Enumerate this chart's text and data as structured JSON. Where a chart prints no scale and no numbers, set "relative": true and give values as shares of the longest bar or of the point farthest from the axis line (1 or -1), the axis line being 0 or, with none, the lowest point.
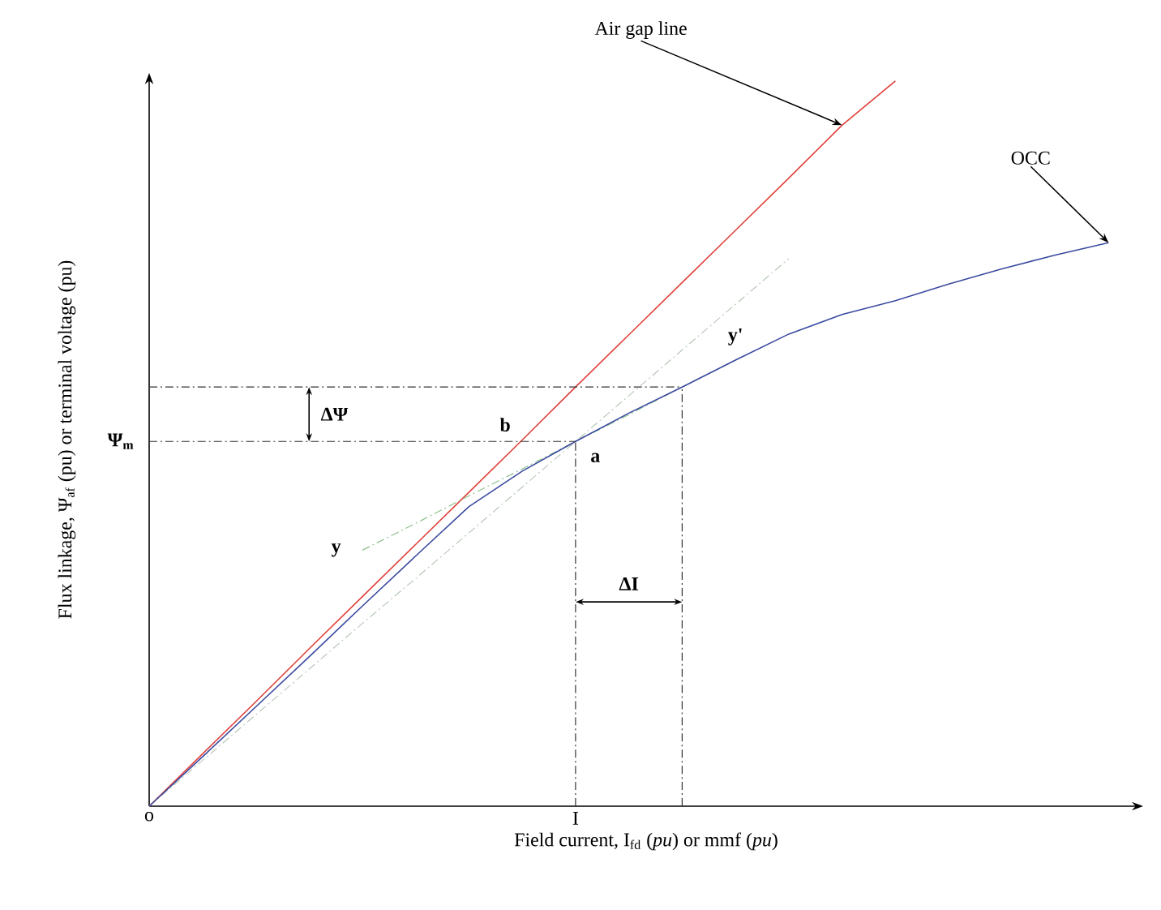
{
  "chart_data": {
    "type": "line",
    "relative": true,
    "xlabel": "Field current, I$_{fd}$ (*pu*) or mmf (*pu*)",
    "ylabel": "Flux linkage, Ψ$_{af}$ (pu) or terminal voltage (pu)",
    "categories": [
      "o",
      null,
      null,
      null,
      null,
      null,
      null,
      null,
      "I",
      null,
      null,
      null,
      null,
      null,
      null,
      null,
      null,
      null,
      null
    ],
    "series": [
      {
        "color": "#e0403a",
        "line_style": "solid",
        "values": [
          0,
          0.072,
          0.144,
          0.217,
          0.289,
          0.361,
          0.433,
          0.505,
          0.578,
          0.65,
          0.722,
          0.794,
          0.866,
          0.939,
          1.0,
          null,
          null,
          null,
          null
        ]
      },
      {
        "color": "#8cc08c",
        "line_style": "dashed",
        "values": [
          null,
          null,
          null,
          null,
          0.353,
          0.39,
          0.428,
          0.465,
          0.503,
          0.54,
          0.578,
          0.615,
          null,
          null,
          null,
          null,
          null,
          null,
          null
        ]
      },
      {
        "color": "#b8c8b8",
        "line_style": "dashed",
        "values": [
          0,
          0.063,
          0.126,
          0.189,
          0.252,
          0.314,
          0.377,
          0.44,
          0.503,
          0.566,
          0.629,
          0.692,
          0.755,
          null,
          null,
          null,
          null,
          null,
          null
        ]
      },
      {
        "color": "#3a4aa0",
        "line_style": "solid",
        "values": [
          0,
          0.068,
          0.137,
          0.206,
          0.276,
          0.345,
          0.413,
          0.462,
          0.503,
          0.542,
          0.578,
          0.615,
          0.651,
          0.678,
          0.697,
          0.72,
          0.741,
          0.76,
          0.777
        ]
      },
      {
        "color": "#333333",
        "line_style": "dashed",
        "values": [
          0.503,
          0.503,
          0.503,
          0.503,
          0.503,
          0.503,
          0.503,
          0.503,
          0.503,
          null,
          null,
          null,
          null,
          null,
          null,
          null,
          null,
          null,
          null
        ]
      },
      {
        "color": "#333333",
        "line_style": "dashed",
        "values": [
          0.578,
          0.578,
          0.578,
          0.578,
          0.578,
          0.578,
          0.578,
          0.578,
          0.578,
          0.578,
          0.578,
          null,
          null,
          null,
          null,
          null,
          null,
          null,
          null
        ]
      }
    ],
    "annotations": [
      "Air gap line",
      "OCC",
      {
        "text": "a",
        "x": "I",
        "y": 0.503
      },
      "b",
      "y",
      "y'",
      "ΔΨ",
      "ΔI",
      "Ψ$_{m}$"
    ]
  }
}
